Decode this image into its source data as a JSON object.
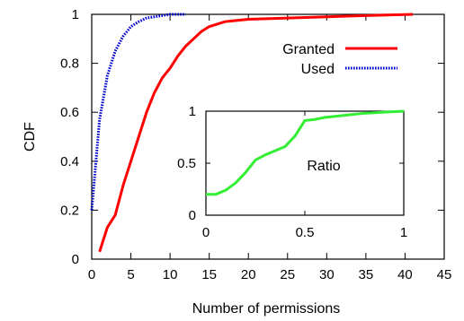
{
  "chart_data": [
    {
      "type": "line",
      "xlabel": "Number of permissions",
      "ylabel": "CDF",
      "xlim": [
        0,
        45
      ],
      "ylim": [
        0,
        1
      ],
      "xticks": [
        0,
        5,
        10,
        15,
        20,
        25,
        30,
        35,
        40,
        45
      ],
      "yticks": [
        0,
        0.2,
        0.4,
        0.6,
        0.8,
        1
      ],
      "xtick_labels": [
        "0",
        "5",
        "10",
        "15",
        "20",
        "25",
        "30",
        "35",
        "40",
        "45"
      ],
      "ytick_labels": [
        "0",
        "0.2",
        "0.4",
        "0.6",
        "0.8",
        "1"
      ],
      "grid": false,
      "legend": "top-right",
      "series": [
        {
          "name": "Granted",
          "color": "#ff0000",
          "style": "solid",
          "x": [
            1,
            2,
            3,
            4,
            5,
            6,
            7,
            8,
            9,
            10,
            11,
            12,
            13,
            14,
            15,
            16,
            17,
            20,
            25,
            30,
            35,
            41
          ],
          "y": [
            0.03,
            0.13,
            0.18,
            0.3,
            0.4,
            0.5,
            0.6,
            0.68,
            0.74,
            0.78,
            0.83,
            0.87,
            0.9,
            0.93,
            0.95,
            0.96,
            0.97,
            0.98,
            0.985,
            0.99,
            0.995,
            1.0
          ]
        },
        {
          "name": "Used",
          "color": "#0000cc",
          "style": "dotted",
          "x": [
            0,
            1,
            2,
            3,
            4,
            5,
            6,
            7,
            8,
            9,
            10,
            11,
            12
          ],
          "y": [
            0.2,
            0.57,
            0.75,
            0.85,
            0.91,
            0.95,
            0.97,
            0.985,
            0.99,
            0.995,
            1.0,
            1.0,
            1.0
          ]
        }
      ]
    },
    {
      "type": "line",
      "title": "Ratio",
      "xlim": [
        0,
        1
      ],
      "ylim": [
        0,
        1
      ],
      "xticks": [
        0,
        0.5,
        1
      ],
      "yticks": [
        0,
        0.5,
        1
      ],
      "xtick_labels": [
        "0",
        "0.5",
        "1"
      ],
      "ytick_labels": [
        "0",
        "0.5",
        "1"
      ],
      "grid": false,
      "series": [
        {
          "color": "#33ee33",
          "style": "solid",
          "x": [
            0,
            0.05,
            0.1,
            0.15,
            0.2,
            0.25,
            0.3,
            0.35,
            0.4,
            0.45,
            0.5,
            0.55,
            0.6,
            0.7,
            0.8,
            0.9,
            1.0
          ],
          "y": [
            0.2,
            0.2,
            0.24,
            0.31,
            0.41,
            0.53,
            0.58,
            0.62,
            0.66,
            0.76,
            0.91,
            0.92,
            0.94,
            0.96,
            0.98,
            0.99,
            1.0
          ]
        }
      ]
    }
  ]
}
